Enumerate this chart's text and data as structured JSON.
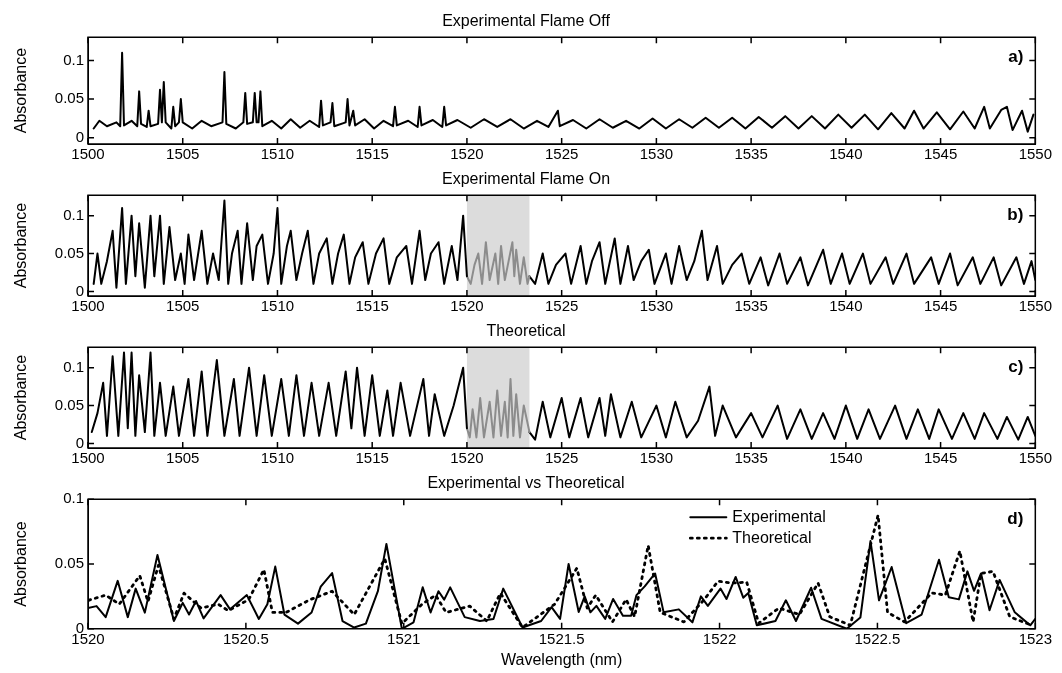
{
  "chart_data": [
    {
      "type": "line",
      "title": "Experimental Flame Off",
      "ylabel": "Absorbance",
      "xlim": [
        1500,
        1550
      ],
      "xticks": [
        1500,
        1505,
        1510,
        1515,
        1520,
        1525,
        1530,
        1535,
        1540,
        1545,
        1550
      ],
      "ylim": [
        -0.008,
        0.13
      ],
      "yticks": [
        0,
        0.05,
        0.1
      ],
      "annotations": [
        "a)"
      ],
      "series": [
        {
          "color": "#000000",
          "x": [
            1500.3,
            1500.6,
            1501.0,
            1501.5,
            1501.7,
            1501.8,
            1501.9,
            1502.3,
            1502.6,
            1502.7,
            1502.8,
            1503.1,
            1503.2,
            1503.3,
            1503.7,
            1503.8,
            1503.9,
            1504.0,
            1504.1,
            1504.4,
            1504.5,
            1504.6,
            1504.8,
            1504.9,
            1505.0,
            1505.5,
            1506.0,
            1506.5,
            1507.1,
            1507.2,
            1507.3,
            1507.8,
            1508.2,
            1508.3,
            1508.4,
            1508.7,
            1508.8,
            1508.9,
            1509.0,
            1509.1,
            1509.2,
            1509.7,
            1510.2,
            1510.7,
            1511.2,
            1511.7,
            1512.2,
            1512.3,
            1512.4,
            1512.8,
            1512.9,
            1513.0,
            1513.6,
            1513.7,
            1513.8,
            1514.0,
            1514.1,
            1514.6,
            1515.1,
            1515.6,
            1516.1,
            1516.2,
            1516.3,
            1516.9,
            1517.4,
            1517.5,
            1517.6,
            1518.2,
            1518.7,
            1518.8,
            1518.9,
            1519.5,
            1520.2,
            1520.9,
            1521.6,
            1522.3,
            1523.0,
            1523.7,
            1524.3,
            1524.8,
            1524.9,
            1525.6,
            1526.3,
            1527.0,
            1527.7,
            1528.4,
            1529.1,
            1529.8,
            1530.5,
            1531.2,
            1531.9,
            1532.6,
            1533.3,
            1534.0,
            1534.7,
            1535.4,
            1536.1,
            1536.8,
            1537.5,
            1538.2,
            1538.9,
            1539.6,
            1540.3,
            1541.0,
            1541.7,
            1542.4,
            1543.1,
            1543.6,
            1544.1,
            1544.8,
            1545.5,
            1546.2,
            1546.8,
            1547.3,
            1547.6,
            1548.2,
            1548.5,
            1548.8,
            1549.3,
            1549.6,
            1549.9
          ],
          "values": [
            0.012,
            0.022,
            0.015,
            0.02,
            0.015,
            0.11,
            0.016,
            0.022,
            0.015,
            0.06,
            0.018,
            0.014,
            0.035,
            0.015,
            0.018,
            0.062,
            0.02,
            0.072,
            0.02,
            0.012,
            0.04,
            0.015,
            0.02,
            0.05,
            0.02,
            0.012,
            0.022,
            0.015,
            0.02,
            0.085,
            0.018,
            0.012,
            0.02,
            0.058,
            0.018,
            0.02,
            0.058,
            0.02,
            0.02,
            0.06,
            0.015,
            0.022,
            0.012,
            0.024,
            0.013,
            0.022,
            0.014,
            0.048,
            0.016,
            0.02,
            0.045,
            0.015,
            0.02,
            0.05,
            0.016,
            0.035,
            0.016,
            0.024,
            0.012,
            0.022,
            0.015,
            0.04,
            0.016,
            0.022,
            0.014,
            0.04,
            0.016,
            0.023,
            0.014,
            0.04,
            0.016,
            0.023,
            0.013,
            0.024,
            0.014,
            0.024,
            0.012,
            0.022,
            0.014,
            0.035,
            0.015,
            0.023,
            0.012,
            0.024,
            0.013,
            0.022,
            0.012,
            0.025,
            0.012,
            0.024,
            0.013,
            0.026,
            0.013,
            0.026,
            0.012,
            0.027,
            0.013,
            0.028,
            0.012,
            0.028,
            0.012,
            0.03,
            0.013,
            0.03,
            0.011,
            0.032,
            0.012,
            0.035,
            0.012,
            0.033,
            0.011,
            0.034,
            0.012,
            0.04,
            0.012,
            0.036,
            0.04,
            0.01,
            0.035,
            0.008,
            0.03
          ]
        }
      ]
    },
    {
      "type": "line",
      "title": "Experimental Flame On",
      "ylabel": "Absorbance",
      "xlim": [
        1500,
        1550
      ],
      "xticks": [
        1500,
        1505,
        1510,
        1515,
        1520,
        1525,
        1530,
        1535,
        1540,
        1545,
        1550
      ],
      "ylim": [
        -0.006,
        0.127
      ],
      "yticks": [
        0,
        0.05,
        0.1
      ],
      "annotations": [
        "b)"
      ],
      "bands": [
        {
          "axis": "x",
          "from": 1520,
          "to": 1523.3,
          "color": "#dcdcdc"
        }
      ],
      "series": [
        {
          "color": "#000000",
          "x": [
            1500.3,
            1500.5,
            1500.7,
            1501.0,
            1501.3,
            1501.5,
            1501.8,
            1502.0,
            1502.3,
            1502.5,
            1502.7,
            1503.0,
            1503.3,
            1503.5,
            1503.8,
            1504.0,
            1504.3,
            1504.6,
            1504.9,
            1505.1,
            1505.3,
            1505.6,
            1506.0,
            1506.3,
            1506.6,
            1506.9,
            1507.2,
            1507.4,
            1507.6,
            1507.9,
            1508.1,
            1508.4,
            1508.7,
            1508.9,
            1509.2,
            1509.5,
            1509.8,
            1510.0,
            1510.2,
            1510.5,
            1510.7,
            1511.0,
            1511.3,
            1511.6,
            1511.9,
            1512.2,
            1512.6,
            1512.9,
            1513.2,
            1513.5,
            1513.8,
            1514.1,
            1514.5,
            1514.8,
            1515.2,
            1515.6,
            1515.9,
            1516.3,
            1516.8,
            1517.1,
            1517.5,
            1517.8,
            1518.1,
            1518.5,
            1518.8,
            1519.2,
            1519.5,
            1519.8,
            1520.0
          ],
          "values": [
            0.01,
            0.05,
            0.01,
            0.04,
            0.08,
            0.005,
            0.11,
            0.01,
            0.1,
            0.02,
            0.09,
            0.005,
            0.1,
            0.02,
            0.1,
            0.01,
            0.085,
            0.015,
            0.05,
            0.01,
            0.075,
            0.015,
            0.08,
            0.01,
            0.05,
            0.015,
            0.12,
            0.01,
            0.05,
            0.08,
            0.01,
            0.09,
            0.015,
            0.06,
            0.075,
            0.01,
            0.05,
            0.11,
            0.01,
            0.06,
            0.08,
            0.015,
            0.05,
            0.08,
            0.01,
            0.05,
            0.07,
            0.01,
            0.05,
            0.075,
            0.01,
            0.045,
            0.065,
            0.01,
            0.05,
            0.07,
            0.01,
            0.045,
            0.06,
            0.01,
            0.08,
            0.015,
            0.05,
            0.065,
            0.01,
            0.06,
            0.015,
            0.1,
            0.02
          ]
        },
        {
          "color": "#8c8c8c",
          "x": [
            1520.0,
            1520.2,
            1520.4,
            1520.6,
            1520.8,
            1521.0,
            1521.2,
            1521.5,
            1521.65,
            1521.8,
            1522.0,
            1522.2,
            1522.4,
            1522.5,
            1522.6,
            1522.8,
            1523.0,
            1523.2,
            1523.3
          ],
          "values": [
            0.02,
            0.01,
            0.035,
            0.05,
            0.01,
            0.065,
            0.015,
            0.05,
            0.01,
            0.06,
            0.015,
            0.04,
            0.065,
            0.02,
            0.055,
            0.01,
            0.045,
            0.01,
            0.02
          ]
        },
        {
          "color": "#000000",
          "x": [
            1523.3,
            1523.6,
            1524.0,
            1524.3,
            1524.7,
            1525.2,
            1525.5,
            1526.0,
            1526.3,
            1526.6,
            1527.0,
            1527.3,
            1527.8,
            1528.1,
            1528.5,
            1528.8,
            1529.2,
            1529.6,
            1529.9,
            1530.5,
            1530.8,
            1531.2,
            1531.6,
            1532.0,
            1532.4,
            1532.7,
            1533.2,
            1533.5,
            1534.0,
            1534.5,
            1534.9,
            1535.5,
            1535.9,
            1536.5,
            1536.9,
            1537.6,
            1538.0,
            1538.8,
            1539.2,
            1539.8,
            1540.2,
            1540.9,
            1541.3,
            1542.1,
            1542.5,
            1543.2,
            1543.6,
            1544.5,
            1544.9,
            1545.5,
            1545.9,
            1546.7,
            1547.1,
            1547.8,
            1548.2,
            1549.0,
            1549.4,
            1549.8,
            1550.0
          ],
          "values": [
            0.02,
            0.01,
            0.05,
            0.01,
            0.035,
            0.05,
            0.01,
            0.06,
            0.01,
            0.04,
            0.065,
            0.01,
            0.07,
            0.01,
            0.06,
            0.015,
            0.04,
            0.055,
            0.01,
            0.05,
            0.01,
            0.06,
            0.015,
            0.04,
            0.08,
            0.015,
            0.06,
            0.01,
            0.035,
            0.05,
            0.01,
            0.045,
            0.008,
            0.05,
            0.01,
            0.045,
            0.008,
            0.055,
            0.01,
            0.05,
            0.01,
            0.05,
            0.01,
            0.045,
            0.01,
            0.05,
            0.01,
            0.045,
            0.01,
            0.05,
            0.008,
            0.045,
            0.01,
            0.045,
            0.008,
            0.045,
            0.01,
            0.04,
            0.015
          ]
        }
      ]
    },
    {
      "type": "line",
      "title": "Theoretical",
      "ylabel": "Absorbance",
      "xlim": [
        1500,
        1550
      ],
      "xticks": [
        1500,
        1505,
        1510,
        1515,
        1520,
        1525,
        1530,
        1535,
        1540,
        1545,
        1550
      ],
      "ylim": [
        -0.006,
        0.127
      ],
      "yticks": [
        0,
        0.05,
        0.1
      ],
      "annotations": [
        "c)"
      ],
      "bands": [
        {
          "axis": "x",
          "from": 1520,
          "to": 1523.3,
          "color": "#dcdcdc"
        }
      ],
      "series": [
        {
          "color": "#000000",
          "x": [
            1500.2,
            1500.5,
            1500.8,
            1501.0,
            1501.3,
            1501.6,
            1501.9,
            1502.1,
            1502.3,
            1502.5,
            1502.7,
            1503.0,
            1503.3,
            1503.5,
            1503.8,
            1504.1,
            1504.5,
            1504.8,
            1505.3,
            1505.6,
            1506.0,
            1506.3,
            1506.8,
            1507.2,
            1507.7,
            1508.0,
            1508.5,
            1508.9,
            1509.3,
            1509.7,
            1510.2,
            1510.6,
            1511.0,
            1511.4,
            1511.8,
            1512.2,
            1512.7,
            1513.1,
            1513.6,
            1513.9,
            1514.2,
            1514.6,
            1515.0,
            1515.4,
            1515.8,
            1516.1,
            1516.5,
            1517.0,
            1517.7,
            1518.0,
            1518.3,
            1518.8,
            1519.3,
            1519.8,
            1520.0
          ],
          "values": [
            0.015,
            0.04,
            0.08,
            0.01,
            0.115,
            0.01,
            0.12,
            0.02,
            0.12,
            0.01,
            0.09,
            0.015,
            0.12,
            0.01,
            0.08,
            0.01,
            0.075,
            0.01,
            0.085,
            0.01,
            0.095,
            0.01,
            0.11,
            0.01,
            0.085,
            0.01,
            0.1,
            0.01,
            0.09,
            0.01,
            0.085,
            0.01,
            0.09,
            0.01,
            0.08,
            0.01,
            0.08,
            0.01,
            0.095,
            0.02,
            0.1,
            0.01,
            0.09,
            0.01,
            0.07,
            0.01,
            0.08,
            0.01,
            0.085,
            0.01,
            0.065,
            0.01,
            0.05,
            0.1,
            0.02
          ]
        },
        {
          "color": "#8c8c8c",
          "x": [
            1520.0,
            1520.15,
            1520.3,
            1520.5,
            1520.7,
            1520.9,
            1521.2,
            1521.4,
            1521.6,
            1521.8,
            1522.0,
            1522.15,
            1522.3,
            1522.45,
            1522.6,
            1522.8,
            1523.0,
            1523.3
          ],
          "values": [
            0.02,
            0.008,
            0.045,
            0.008,
            0.06,
            0.008,
            0.055,
            0.008,
            0.07,
            0.01,
            0.055,
            0.008,
            0.085,
            0.01,
            0.065,
            0.008,
            0.05,
            0.015
          ]
        },
        {
          "color": "#000000",
          "x": [
            1523.3,
            1523.6,
            1524.0,
            1524.4,
            1525.0,
            1525.4,
            1526.0,
            1526.4,
            1527.0,
            1527.3,
            1527.6,
            1528.1,
            1528.7,
            1529.2,
            1530.0,
            1530.5,
            1531.0,
            1531.6,
            1532.2,
            1532.8,
            1533.1,
            1533.5,
            1534.2,
            1535.0,
            1535.6,
            1536.4,
            1536.9,
            1537.6,
            1538.2,
            1538.8,
            1539.4,
            1540.0,
            1540.6,
            1541.2,
            1541.8,
            1542.6,
            1543.2,
            1543.8,
            1544.4,
            1544.9,
            1545.6,
            1546.2,
            1546.8,
            1547.3,
            1548.0,
            1548.5,
            1549.1,
            1549.6,
            1550.0
          ],
          "values": [
            0.015,
            0.005,
            0.055,
            0.008,
            0.06,
            0.008,
            0.06,
            0.008,
            0.06,
            0.01,
            0.065,
            0.008,
            0.055,
            0.008,
            0.05,
            0.008,
            0.055,
            0.008,
            0.03,
            0.075,
            0.01,
            0.05,
            0.008,
            0.04,
            0.008,
            0.05,
            0.006,
            0.045,
            0.006,
            0.04,
            0.006,
            0.05,
            0.006,
            0.045,
            0.006,
            0.05,
            0.006,
            0.045,
            0.006,
            0.045,
            0.006,
            0.04,
            0.006,
            0.04,
            0.006,
            0.035,
            0.005,
            0.035,
            0.01
          ]
        }
      ]
    },
    {
      "type": "line",
      "title": "Experimental vs Theoretical",
      "xlabel": "Wavelength (nm)",
      "ylabel": "Absorbance",
      "xlim": [
        1520,
        1523
      ],
      "xticks": [
        1520,
        1520.5,
        1521,
        1521.5,
        1522,
        1522.5,
        1523
      ],
      "ylim": [
        0,
        0.1
      ],
      "yticks": [
        0,
        0.05,
        0.1
      ],
      "annotations": [
        "d)"
      ],
      "legend": "top right",
      "series": [
        {
          "name": "Experimental",
          "color": "#000000",
          "line_style": "solid",
          "x": [
            1520.0,
            1520.027,
            1520.056,
            1520.094,
            1520.126,
            1520.151,
            1520.18,
            1520.22,
            1520.272,
            1520.3,
            1520.32,
            1520.342,
            1520.366,
            1520.42,
            1520.45,
            1520.503,
            1520.541,
            1520.568,
            1520.593,
            1520.622,
            1520.665,
            1520.708,
            1520.737,
            1520.773,
            1520.806,
            1520.843,
            1520.88,
            1520.918,
            1520.945,
            1520.994,
            1521.031,
            1521.06,
            1521.085,
            1521.11,
            1521.128,
            1521.147,
            1521.193,
            1521.241,
            1521.284,
            1521.315,
            1521.376,
            1521.435,
            1521.468,
            1521.495,
            1521.522,
            1521.554,
            1521.573,
            1521.591,
            1521.61,
            1521.638,
            1521.663,
            1521.694,
            1521.72,
            1521.737,
            1521.763,
            1521.796,
            1521.823,
            1521.871,
            1521.914,
            1521.941,
            1521.963,
            1522.003,
            1522.022,
            1522.051,
            1522.075,
            1522.091,
            1522.118,
            1522.177,
            1522.21,
            1522.242,
            1522.29,
            1522.323,
            1522.403,
            1522.446,
            1522.478,
            1522.505,
            1522.545,
            1522.591,
            1522.64,
            1522.695,
            1522.726,
            1522.758,
            1522.785,
            1522.806,
            1522.828,
            1522.855,
            1522.887,
            1522.935,
            1522.984,
            1523.0
          ],
          "values": [
            0.016,
            0.0175,
            0.009,
            0.037,
            0.009,
            0.031,
            0.0125,
            0.057,
            0.006,
            0.02,
            0.011,
            0.0215,
            0.008,
            0.026,
            0.015,
            0.026,
            0.0076,
            0.019,
            0.048,
            0.011,
            0.004,
            0.0126,
            0.0325,
            0.043,
            0.006,
            0.001,
            0.004,
            0.029,
            0.0655,
            0.0,
            0.005,
            0.032,
            0.0126,
            0.029,
            0.0225,
            0.032,
            0.009,
            0.006,
            0.0076,
            0.031,
            0.001,
            0.006,
            0.0167,
            0.0077,
            0.05,
            0.013,
            0.025,
            0.0127,
            0.0177,
            0.0077,
            0.023,
            0.01,
            0.01,
            0.026,
            0.0327,
            0.0427,
            0.0127,
            0.015,
            0.005,
            0.025,
            0.0177,
            0.031,
            0.023,
            0.04,
            0.024,
            0.0277,
            0.0027,
            0.006,
            0.022,
            0.006,
            0.0317,
            0.0077,
            0.0,
            0.0087,
            0.0677,
            0.022,
            0.0477,
            0.0043,
            0.011,
            0.0533,
            0.0243,
            0.0227,
            0.0443,
            0.0293,
            0.0427,
            0.0143,
            0.0377,
            0.0127,
            0.0027,
            0.0077
          ]
        },
        {
          "name": "Theoretical",
          "color": "#000000",
          "line_style": "dotted",
          "x": [
            1520.002,
            1520.056,
            1520.099,
            1520.164,
            1520.19,
            1520.223,
            1520.272,
            1520.304,
            1520.358,
            1520.412,
            1520.444,
            1520.509,
            1520.557,
            1520.584,
            1520.627,
            1520.703,
            1520.773,
            1520.843,
            1520.94,
            1520.994,
            1521.058,
            1521.101,
            1521.134,
            1521.209,
            1521.263,
            1521.306,
            1521.376,
            1521.478,
            1521.548,
            1521.581,
            1521.608,
            1521.661,
            1521.704,
            1521.731,
            1521.774,
            1521.812,
            1521.887,
            1521.952,
            1521.995,
            1522.038,
            1522.086,
            1522.124,
            1522.188,
            1522.253,
            1522.312,
            1522.349,
            1522.414,
            1522.502,
            1522.532,
            1522.586,
            1522.672,
            1522.715,
            1522.761,
            1522.803,
            1522.828,
            1522.866,
            1522.919,
            1522.989
          ],
          "values": [
            0.022,
            0.026,
            0.019,
            0.041,
            0.021,
            0.049,
            0.0076,
            0.0275,
            0.016,
            0.019,
            0.014,
            0.0225,
            0.0457,
            0.0126,
            0.0126,
            0.0225,
            0.029,
            0.011,
            0.054,
            0.004,
            0.019,
            0.026,
            0.0126,
            0.0175,
            0.006,
            0.0275,
            0.001,
            0.019,
            0.0467,
            0.016,
            0.026,
            0.0053,
            0.0227,
            0.0093,
            0.0643,
            0.0127,
            0.0053,
            0.0227,
            0.0367,
            0.0353,
            0.036,
            0.0043,
            0.016,
            0.011,
            0.0353,
            0.0093,
            0.0027,
            0.0877,
            0.0127,
            0.0053,
            0.0277,
            0.026,
            0.06,
            0.0053,
            0.0427,
            0.0443,
            0.0093,
            0.0027
          ]
        }
      ]
    }
  ]
}
